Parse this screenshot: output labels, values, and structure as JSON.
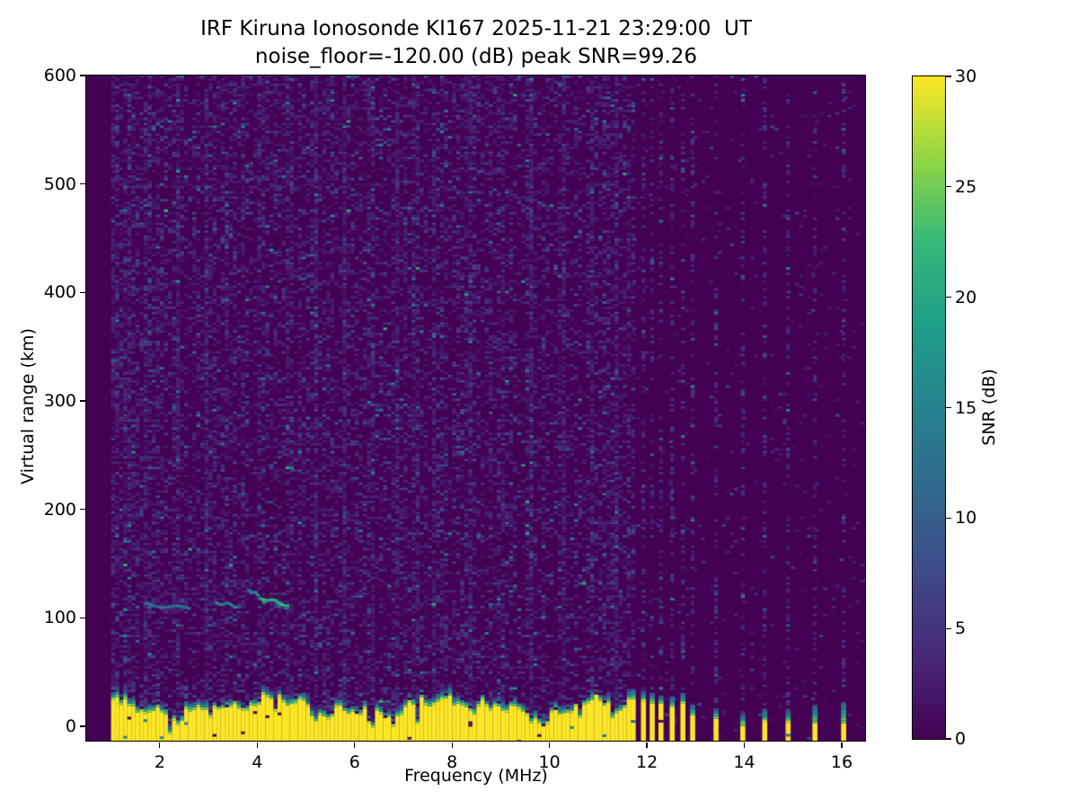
{
  "figure": {
    "title_line1": "IRF Kiruna Ionosonde KI167 2025-11-21 23:29:00  UT",
    "title_line2": "noise_floor=-120.00 (dB) peak SNR=99.26",
    "xlabel": "Frequency (MHz)",
    "ylabel": "Virtual range (km)",
    "colorbar_label": "SNR (dB)"
  },
  "chart_data": {
    "type": "heatmap",
    "title": "IRF Kiruna Ionosonde KI167 2025-11-21 23:29:00  UT",
    "subtitle": "noise_floor=-120.00 (dB) peak SNR=99.26",
    "station": "KI167",
    "timestamp_ut": "2025-11-21 23:29:00",
    "noise_floor_dB": -120.0,
    "peak_snr_dB": 99.26,
    "xlabel": "Frequency (MHz)",
    "ylabel": "Virtual range (km)",
    "xlim": [
      0.49,
      16.48
    ],
    "ylim": [
      -13.3,
      600
    ],
    "xticks": [
      2,
      4,
      6,
      8,
      10,
      12,
      14,
      16
    ],
    "yticks": [
      0,
      100,
      200,
      300,
      400,
      500,
      600
    ],
    "grid": false,
    "colorbar": {
      "label": "SNR (dB)",
      "min": 0,
      "max": 30,
      "ticks": [
        0,
        5,
        10,
        15,
        20,
        25,
        30
      ],
      "colormap": "viridis",
      "stops": [
        "#440154",
        "#482878",
        "#3e4a89",
        "#31688e",
        "#26828e",
        "#1f9e89",
        "#35b779",
        "#90d743",
        "#fde725"
      ]
    },
    "features": {
      "data_start_mhz": 1.0,
      "continuous_sweep_end_mhz": 11.62,
      "ground_clutter": {
        "snr_dB": 30,
        "base_top_km": 17,
        "top_km_range": [
          6,
          42
        ],
        "notches": [
          {
            "f": 1.62,
            "d": 14,
            "w": 0.04
          },
          {
            "f": 2.18,
            "d": 13,
            "w": 0.04
          },
          {
            "f": 3.0,
            "d": 8,
            "w": 0.035
          },
          {
            "f": 4.33,
            "d": 10,
            "w": 0.04
          },
          {
            "f": 5.15,
            "d": 9,
            "w": 0.04
          },
          {
            "f": 6.3,
            "d": 30,
            "w": 0.05
          },
          {
            "f": 6.78,
            "d": 8,
            "w": 0.035
          },
          {
            "f": 7.23,
            "d": 27,
            "w": 0.05
          },
          {
            "f": 7.62,
            "d": 9,
            "w": 0.04
          },
          {
            "f": 8.05,
            "d": 8,
            "w": 0.035
          },
          {
            "f": 8.72,
            "d": 8,
            "w": 0.035
          },
          {
            "f": 9.58,
            "d": 12,
            "w": 0.04
          },
          {
            "f": 10.25,
            "d": 8,
            "w": 0.035
          },
          {
            "f": 10.62,
            "d": 11,
            "w": 0.04
          },
          {
            "f": 11.28,
            "d": 9,
            "w": 0.04
          }
        ]
      },
      "noisy_columns_mhz": [
        1.03,
        1.28,
        1.72,
        2.3,
        2.95,
        3.3,
        4.05,
        4.6,
        5.15,
        5.75,
        6.3,
        6.85,
        7.23,
        7.62,
        8.3,
        9.0,
        9.58,
        10.25,
        10.85,
        11.3
      ],
      "echo_traces": [
        {
          "f0": 1.72,
          "f1": 2.6,
          "km0": 112,
          "km1": 109,
          "snr": 12
        },
        {
          "f0": 3.17,
          "f1": 3.56,
          "km0": 114,
          "km1": 111,
          "snr": 13
        },
        {
          "f0": 3.84,
          "f1": 4.1,
          "km0": 126,
          "km1": 118,
          "snr": 15
        },
        {
          "f0": 4.1,
          "f1": 4.62,
          "km0": 118,
          "km1": 112,
          "snr": 21
        }
      ],
      "hf_stripes": [
        {
          "f": 11.72,
          "yellow_top_km": 25,
          "tip_top_km": 34
        },
        {
          "f": 11.93,
          "yellow_top_km": 23,
          "tip_top_km": 32
        },
        {
          "f": 12.11,
          "yellow_top_km": 21,
          "tip_top_km": 30
        },
        {
          "f": 12.29,
          "yellow_top_km": 21,
          "tip_top_km": 29
        },
        {
          "f": 12.52,
          "yellow_top_km": 18,
          "tip_top_km": 27
        },
        {
          "f": 12.74,
          "yellow_top_km": 21,
          "tip_top_km": 30
        },
        {
          "f": 12.94,
          "yellow_top_km": 10,
          "tip_top_km": 20
        },
        {
          "f": 13.42,
          "yellow_top_km": 7,
          "tip_top_km": 17
        },
        {
          "f": 13.97,
          "yellow_top_km": 0,
          "tip_top_km": 13
        },
        {
          "f": 14.42,
          "yellow_top_km": 4,
          "tip_top_km": 15
        },
        {
          "f": 14.9,
          "yellow_top_km": 3,
          "tip_top_km": 16
        },
        {
          "f": 15.45,
          "yellow_top_km": 3,
          "tip_top_km": 20
        },
        {
          "f": 16.04,
          "yellow_top_km": 3,
          "tip_top_km": 22
        }
      ]
    },
    "colors": {
      "figure_bg": "#ffffff",
      "text": "#000000",
      "cmap_min": "#440154",
      "cmap_max": "#fde725"
    }
  }
}
